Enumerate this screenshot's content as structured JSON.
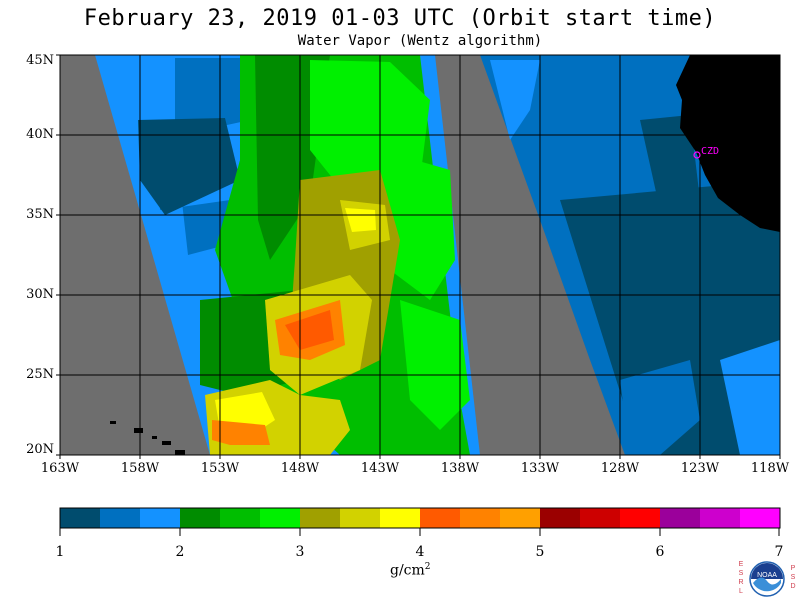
{
  "title": "February 23, 2019  01-03 UTC  (Orbit start time)",
  "subtitle": "Water Vapor (Wentz algorithm)",
  "map": {
    "lat_labels": [
      "45N",
      "40N",
      "35N",
      "30N",
      "25N",
      "20N"
    ],
    "lon_labels": [
      "163W",
      "158W",
      "153W",
      "148W",
      "143W",
      "138W",
      "133W",
      "128W",
      "123W",
      "118W"
    ],
    "lat_range": [
      20,
      45
    ],
    "lon_range": [
      -163,
      -118
    ],
    "city_label": "CZD",
    "colors": {
      "no_data": "#6e6e6e",
      "land": "#000000",
      "grid": "#000000",
      "city": "#ff00ff"
    }
  },
  "colorbar": {
    "unit_main": "g/cm",
    "unit_sup": "2",
    "tick_labels": [
      "1",
      "2",
      "3",
      "4",
      "5",
      "6",
      "7"
    ],
    "range": [
      1,
      7
    ],
    "colors": [
      "#004c6e",
      "#0070c0",
      "#1492ff",
      "#008c00",
      "#00be00",
      "#00f000",
      "#a0a000",
      "#d2d200",
      "#ffff00",
      "#ff5a00",
      "#ff8200",
      "#ffa000",
      "#9b0000",
      "#cd0000",
      "#ff0000",
      "#9b009b",
      "#cd00cd",
      "#ff00ff"
    ]
  },
  "logo": {
    "left_letters": [
      "E",
      "S",
      "R",
      "L"
    ],
    "right_letters": [
      "P",
      "S",
      "D"
    ],
    "center_text": "NOAA"
  }
}
